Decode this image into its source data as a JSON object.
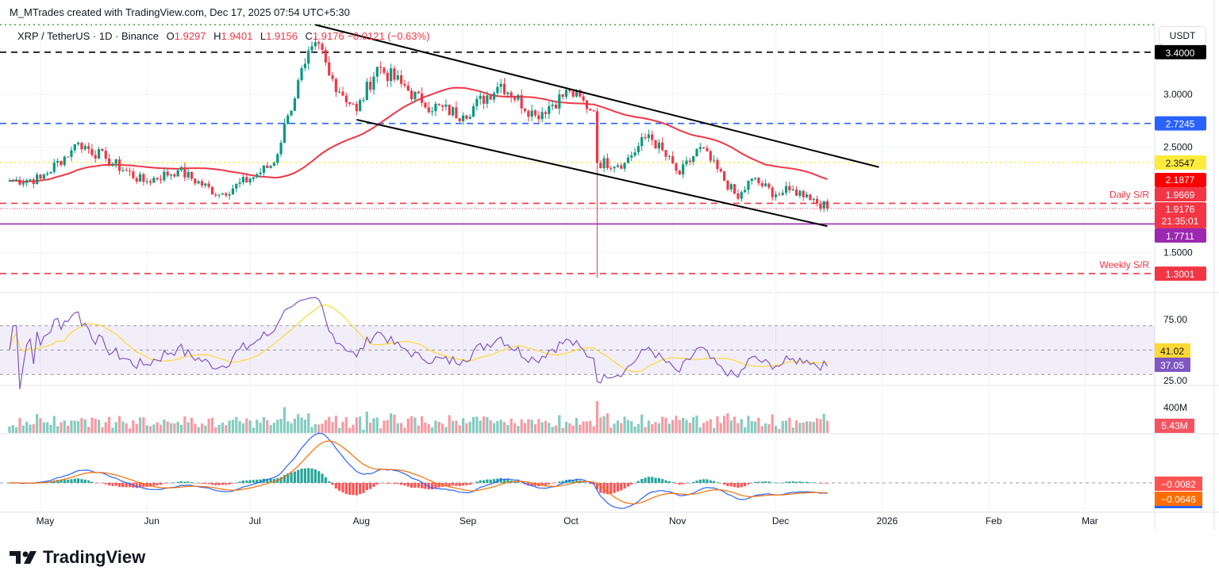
{
  "credit": "M_MTrades created with TradingView.com, Dec 17, 2025 07:54 UTC+5:30",
  "legend": {
    "symbol": "XRP / TetherUS · 1D · Binance",
    "open_label": "O",
    "open": "1.9297",
    "high_label": "H",
    "high": "1.9401",
    "low_label": "L",
    "low": "1.9156",
    "close_label": "C",
    "close": "1.9176",
    "change": "−0.0121 (−0.63%)"
  },
  "currency_button": "USDT",
  "brand": "TradingView",
  "colors": {
    "up": "#089981",
    "down": "#f23645",
    "ma": "#f23645",
    "rsi": "#7e57c2",
    "rsi_ma": "#fdd835",
    "macd": "#2962ff",
    "signal": "#ff6d00"
  },
  "chart_data": {
    "type": "candlestick",
    "title": "XRP / TetherUS · 1D · Binance",
    "ylim": [
      1.2,
      3.7
    ],
    "y_ticks": [
      "3.0000",
      "2.5000",
      "1.5000"
    ],
    "x_ticks": [
      "May",
      "Jun",
      "Jul",
      "Aug",
      "Sep",
      "Oct",
      "Nov",
      "Dec",
      "2026",
      "Feb",
      "Mar"
    ],
    "x_tick_dates": [
      "2025-05-01",
      "2025-06-01",
      "2025-07-01",
      "2025-08-01",
      "2025-09-01",
      "2025-10-01",
      "2025-11-01",
      "2025-12-01",
      "2026-01-01",
      "2026-02-01",
      "2026-03-01"
    ],
    "approx_closes": [
      [
        "2025-04-22",
        2.18
      ],
      [
        "2025-05-01",
        2.2
      ],
      [
        "2025-05-10",
        2.47
      ],
      [
        "2025-05-12",
        2.54
      ],
      [
        "2025-05-20",
        2.39
      ],
      [
        "2025-05-31",
        2.17
      ],
      [
        "2025-06-10",
        2.28
      ],
      [
        "2025-06-22",
        2.05
      ],
      [
        "2025-07-01",
        2.2
      ],
      [
        "2025-07-08",
        2.35
      ],
      [
        "2025-07-12",
        2.8
      ],
      [
        "2025-07-17",
        3.29
      ],
      [
        "2025-07-21",
        3.48
      ],
      [
        "2025-07-24",
        3.18
      ],
      [
        "2025-08-01",
        2.84
      ],
      [
        "2025-08-07",
        3.26
      ],
      [
        "2025-08-14",
        3.1
      ],
      [
        "2025-08-20",
        2.92
      ],
      [
        "2025-09-01",
        2.8
      ],
      [
        "2025-09-12",
        3.1
      ],
      [
        "2025-09-22",
        2.8
      ],
      [
        "2025-10-02",
        3.03
      ],
      [
        "2025-10-09",
        2.84
      ],
      [
        "2025-10-10",
        2.35
      ],
      [
        "2025-10-18",
        2.35
      ],
      [
        "2025-10-25",
        2.62
      ],
      [
        "2025-11-03",
        2.24
      ],
      [
        "2025-11-09",
        2.5
      ],
      [
        "2025-11-20",
        2.01
      ],
      [
        "2025-11-24",
        2.2
      ],
      [
        "2025-12-01",
        2.05
      ],
      [
        "2025-12-05",
        2.09
      ],
      [
        "2025-12-10",
        2.05
      ],
      [
        "2025-12-16",
        1.92
      ]
    ],
    "flash_low": {
      "date": "2025-10-10",
      "low": 1.26
    },
    "moving_average": {
      "period": 50,
      "last": "2.1877"
    },
    "levels": [
      {
        "price": 3.4,
        "label": "3.4000",
        "color": "#000000",
        "style": "dashed"
      },
      {
        "price": 2.7245,
        "label": "2.7245",
        "color": "#2962ff",
        "style": "dashed"
      },
      {
        "price": 2.3547,
        "label": "2.3547",
        "color": "#ffeb3b",
        "style": "dotted"
      },
      {
        "price": 1.9669,
        "label": "1.9669",
        "color": "#f23645",
        "style": "dashed",
        "note": "Daily S/R"
      },
      {
        "price": 1.7711,
        "label": "1.7711",
        "color": "#9c27b0",
        "style": "solid"
      },
      {
        "price": 1.3001,
        "label": "1.3001",
        "color": "#f23645",
        "style": "dashed",
        "note": "Weekly S/R"
      },
      {
        "price": 3.66,
        "label": "",
        "color": "#4caf50",
        "style": "dotted"
      }
    ],
    "last_price": {
      "label": "1.9176",
      "countdown": "21:35:01"
    },
    "channel": {
      "upper": [
        [
          "2025-07-20",
          3.66
        ],
        [
          "2025-12-31",
          2.31
        ]
      ],
      "lower": [
        [
          "2025-08-01",
          2.76
        ],
        [
          "2025-12-16",
          1.75
        ]
      ]
    },
    "rsi": {
      "ticks": [
        "75.00",
        "25.00"
      ],
      "value": "37.05",
      "ma_value": "41.02",
      "band": [
        30,
        70
      ]
    },
    "volume": {
      "tick": "400M",
      "value": "5.43M"
    },
    "macd": {
      "hist": "−0.0082",
      "signal_value": "−0.0646"
    }
  }
}
